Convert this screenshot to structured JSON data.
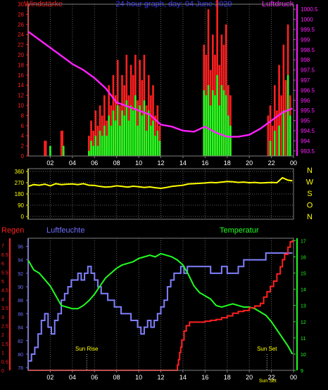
{
  "chart_data": [
    {
      "type": "bar",
      "panel": "wind",
      "title": "24 hour graph, day: 04 June 2020",
      "left_axis_label": "Windstärke",
      "right_axis_label": "Luftdruck",
      "left_ticks": [
        "0",
        "2",
        "4",
        "6",
        "8",
        "10",
        "12",
        "14",
        "16",
        "18",
        "20",
        "22",
        "24",
        "26",
        "28",
        "30"
      ],
      "right_ticks": [
        "993.5",
        "994",
        "994.5",
        "995",
        "995.5",
        "996",
        "996.5",
        "997",
        "997.5",
        "998",
        "998.5",
        "999",
        "999.5",
        "1000",
        "1000.5"
      ],
      "x_ticks": [
        "02",
        "04",
        "06",
        "08",
        "10",
        "12",
        "14",
        "16",
        "18",
        "20",
        "22",
        "00"
      ],
      "ylim": [
        0,
        30
      ],
      "pressure_ylim": [
        993.25,
        1000.75
      ],
      "colors": {
        "gust": "#ff2020",
        "wind": "#20ff20",
        "pressure": "#ff20ff",
        "left_axis": "#ff2020",
        "right_axis": "#ff20ff"
      },
      "gust_series": {
        "name": "Gust",
        "x": [
          1.5,
          1.6,
          3.0,
          3.1,
          5.5,
          5.7,
          5.9,
          6.1,
          6.3,
          6.5,
          6.7,
          6.9,
          7.1,
          7.3,
          7.5,
          7.7,
          7.9,
          8.1,
          8.3,
          8.5,
          8.7,
          8.9,
          9.1,
          9.3,
          9.5,
          9.7,
          9.9,
          10.1,
          10.3,
          10.5,
          10.7,
          10.9,
          11.1,
          11.3,
          11.5,
          11.7,
          11.9,
          15.9,
          16.1,
          16.3,
          16.5,
          16.7,
          16.9,
          17.1,
          17.3,
          17.5,
          17.7,
          17.9,
          18.1,
          18.3,
          21.7,
          21.9,
          22.1,
          22.3,
          22.5,
          22.7,
          22.9,
          23.1,
          23.3,
          23.5,
          23.7
        ],
        "values": [
          3,
          3,
          5,
          5,
          4,
          7,
          5,
          9,
          6,
          10,
          8,
          12,
          7,
          14,
          10,
          16,
          12,
          19,
          10,
          16,
          14,
          20,
          12,
          18,
          16,
          20,
          11,
          19,
          15,
          20,
          10,
          16,
          12,
          14,
          8,
          10,
          6,
          22,
          20,
          29,
          17,
          24,
          20,
          31,
          18,
          24,
          22,
          26,
          14,
          12,
          8,
          10,
          6,
          14,
          9,
          18,
          12,
          22,
          15,
          26,
          12
        ]
      },
      "wind_series": {
        "name": "Wind",
        "x": [
          2.0,
          3.2,
          5.5,
          5.7,
          5.9,
          6.1,
          6.3,
          6.5,
          6.7,
          6.9,
          7.1,
          7.3,
          7.5,
          7.7,
          7.9,
          8.1,
          8.3,
          8.5,
          8.7,
          8.9,
          9.1,
          9.3,
          9.5,
          9.7,
          9.9,
          10.1,
          10.3,
          10.5,
          10.7,
          10.9,
          11.1,
          11.3,
          11.5,
          11.7,
          11.9,
          15.9,
          16.1,
          16.3,
          16.5,
          16.7,
          16.9,
          17.1,
          17.3,
          17.5,
          17.7,
          17.9,
          18.1,
          18.3,
          21.9,
          22.3,
          22.7,
          23.1,
          23.5,
          23.7
        ],
        "values": [
          2,
          2,
          1,
          3,
          2,
          4,
          2,
          5,
          4,
          6,
          4,
          8,
          6,
          9,
          7,
          10,
          6,
          9,
          8,
          11,
          7,
          10,
          9,
          12,
          6,
          10,
          8,
          11,
          5,
          9,
          6,
          7,
          4,
          5,
          3,
          13,
          12,
          14,
          10,
          13,
          12,
          16,
          10,
          14,
          13,
          12,
          8,
          6,
          3,
          5,
          6,
          9,
          16,
          8
        ]
      },
      "pressure_series": {
        "name": "Luftdruck",
        "x": [
          0,
          1,
          2,
          3,
          4,
          5,
          6,
          7,
          8,
          9,
          10,
          11,
          12,
          13,
          14,
          15,
          16,
          17,
          18,
          19,
          20,
          21,
          22,
          23,
          23.9
        ],
        "values": [
          999.4,
          999.0,
          998.6,
          998.2,
          997.8,
          997.5,
          997.1,
          996.6,
          995.9,
          995.7,
          995.5,
          995.3,
          994.8,
          994.7,
          994.5,
          994.45,
          994.7,
          994.4,
          994.2,
          994.2,
          994.3,
          994.6,
          995.0,
          995.4,
          995.6
        ]
      }
    },
    {
      "type": "line",
      "panel": "direction",
      "right_labels": [
        "N",
        "W",
        "S",
        "O",
        "N"
      ],
      "y_ticks": [
        "0",
        "90",
        "180",
        "270",
        "360"
      ],
      "ylim": [
        0,
        360
      ],
      "colors": {
        "line": "#ffff00",
        "axis": "#ffff00",
        "labels": "#ffff00"
      },
      "series": [
        {
          "name": "Windrichtung",
          "x": [
            0,
            0.5,
            1,
            1.5,
            2,
            2.5,
            3,
            3.5,
            4,
            4.5,
            5,
            5.5,
            6,
            6.5,
            7,
            7.5,
            8,
            8.5,
            9,
            9.5,
            10,
            10.5,
            11,
            11.5,
            12,
            12.5,
            13,
            13.5,
            14,
            14.5,
            15,
            15.5,
            16,
            16.5,
            17,
            17.5,
            18,
            18.5,
            19,
            19.5,
            20,
            20.5,
            21,
            21.5,
            22,
            22.5,
            23,
            23.5,
            23.9
          ],
          "values": [
            240,
            255,
            250,
            258,
            245,
            262,
            255,
            258,
            260,
            255,
            262,
            250,
            248,
            240,
            235,
            238,
            245,
            240,
            235,
            242,
            238,
            232,
            236,
            230,
            225,
            232,
            240,
            245,
            250,
            260,
            262,
            265,
            268,
            272,
            270,
            275,
            280,
            278,
            272,
            275,
            270,
            272,
            268,
            270,
            272,
            270,
            310,
            290,
            285
          ]
        }
      ]
    },
    {
      "type": "line",
      "panel": "rain-humidity-temperature",
      "labels": {
        "rain": "Regen",
        "humidity": "Luftfeuchte",
        "temperature": "Temperatur"
      },
      "left_outer_ticks": [
        "0",
        "0.5",
        "1",
        "1.5",
        "2",
        "2.5",
        "3",
        "3.5",
        "4",
        "4.5",
        "5",
        "5.5",
        "6",
        "6.5",
        "7"
      ],
      "left_outer_ylim": [
        0,
        7.4
      ],
      "left_inner_ticks": [
        "78",
        "80",
        "82",
        "84",
        "86",
        "88",
        "90",
        "92",
        "94",
        "96"
      ],
      "left_inner_ylim": [
        77.6,
        97.2
      ],
      "right_ticks": [
        "9",
        "10",
        "11",
        "12",
        "13",
        "14",
        "15",
        "16",
        "17"
      ],
      "right_ylim": [
        9,
        17.15
      ],
      "x_ticks": [
        "02",
        "04",
        "06",
        "08",
        "10",
        "12",
        "14",
        "16",
        "18",
        "20",
        "22",
        "00"
      ],
      "annotations": {
        "sun_rise": "Sun Rise",
        "sun_set": "Sun Set",
        "sun_set_tick": "Sun Set"
      },
      "sun_rise_x": 5.3,
      "sun_set_x": 21.6,
      "colors": {
        "rain": "#ff2020",
        "humidity": "#8080ff",
        "temperature": "#20ff20"
      },
      "series": [
        {
          "name": "Regen",
          "x": [
            0,
            13.4,
            13.5,
            13.6,
            13.7,
            13.8,
            13.9,
            14.1,
            14.3,
            14.6,
            15,
            15.5,
            16,
            16.5,
            17,
            17.5,
            18,
            18.5,
            19,
            19.5,
            20,
            20.5,
            21,
            21.3,
            21.6,
            21.9,
            22.2,
            22.5,
            22.8,
            23.0,
            23.2,
            23.5,
            23.7,
            23.9
          ],
          "values": [
            0,
            0,
            0.3,
            0.6,
            1,
            1.3,
            1.7,
            2.2,
            2.5,
            2.7,
            2.7,
            2.7,
            2.75,
            2.8,
            2.85,
            2.95,
            3.05,
            3.2,
            3.3,
            3.35,
            3.5,
            3.6,
            3.75,
            4.1,
            4.4,
            4.7,
            5.0,
            5.4,
            5.8,
            6.2,
            6.5,
            6.9,
            7.2,
            7.3
          ]
        },
        {
          "name": "Luftfeuchte",
          "x": [
            0,
            0.3,
            0.6,
            0.9,
            1.2,
            1.5,
            1.8,
            2.1,
            2.4,
            2.7,
            3.0,
            3.3,
            3.6,
            3.9,
            4.2,
            4.5,
            4.8,
            5.1,
            5.4,
            5.7,
            6.0,
            6.3,
            6.6,
            6.9,
            7.2,
            7.5,
            7.8,
            8.1,
            8.4,
            8.7,
            9.0,
            9.3,
            9.6,
            9.9,
            10.2,
            10.5,
            10.8,
            11.1,
            11.4,
            11.7,
            12.0,
            12.3,
            12.6,
            12.9,
            13.2,
            13.5,
            13.8,
            14.1,
            14.4,
            14.7,
            15.0,
            15.5,
            16.0,
            16.5,
            17.0,
            17.5,
            18.0,
            18.5,
            19.0,
            19.5,
            20.0,
            20.5,
            21.0,
            21.5,
            22.0,
            22.5,
            23.0,
            23.5,
            23.9
          ],
          "values": [
            79,
            80,
            81,
            83,
            85,
            86,
            84,
            83,
            85,
            86,
            88,
            89,
            90,
            91,
            91,
            92,
            91,
            92,
            93,
            92,
            91,
            90,
            89,
            89,
            88,
            88,
            87,
            87,
            86,
            86,
            86,
            85,
            85,
            84,
            83,
            84,
            85,
            84,
            85,
            86,
            87,
            88,
            90,
            91,
            92,
            92,
            93,
            92,
            93,
            93,
            93,
            93,
            93,
            92,
            92,
            93,
            92,
            92,
            93,
            94,
            94,
            94,
            94,
            95,
            95,
            95,
            95,
            95,
            95
          ]
        },
        {
          "name": "Temperatur",
          "x": [
            0,
            0.5,
            1,
            1.5,
            2,
            2.5,
            3,
            3.5,
            4,
            4.5,
            5,
            5.5,
            6,
            6.5,
            7,
            7.5,
            8,
            8.5,
            9,
            9.5,
            10,
            10.5,
            11,
            11.5,
            12,
            12.5,
            13,
            13.5,
            14,
            14.5,
            15,
            15.5,
            16,
            16.5,
            17,
            17.5,
            18,
            18.5,
            19,
            19.5,
            20,
            20.5,
            21,
            21.5,
            22,
            22.5,
            23,
            23.5,
            23.9
          ],
          "values": [
            15.8,
            15.2,
            15.0,
            14.6,
            14.2,
            13.6,
            13.0,
            12.9,
            12.8,
            12.8,
            13.0,
            13.3,
            13.7,
            14.2,
            14.7,
            15.0,
            15.3,
            15.5,
            15.6,
            15.7,
            15.9,
            16.0,
            16.1,
            16.0,
            16.2,
            16.1,
            16.0,
            15.8,
            15.5,
            14.9,
            14.2,
            13.8,
            13.6,
            13.4,
            13.0,
            12.9,
            13.0,
            13.1,
            13.0,
            12.9,
            12.9,
            12.8,
            12.6,
            12.4,
            12.0,
            11.5,
            11.0,
            10.5,
            10.0
          ]
        }
      ]
    }
  ]
}
